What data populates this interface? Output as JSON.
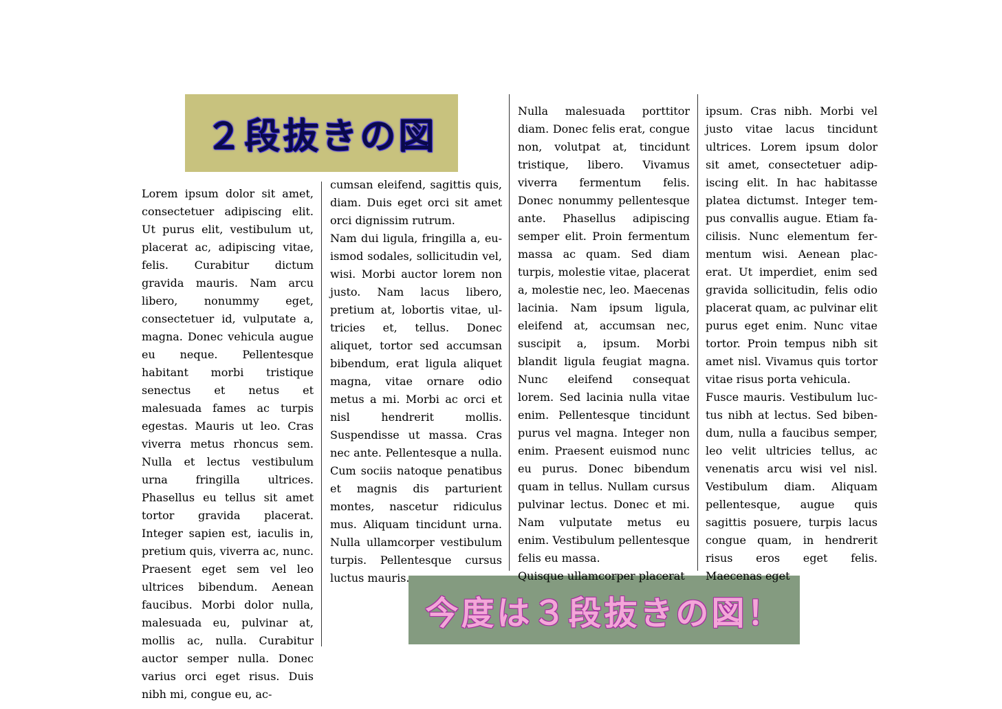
{
  "figures": {
    "two_column_caption": "２段抜きの図",
    "three_column_caption": "今度は３段抜きの図！",
    "two_column_bg": "#c8c27e",
    "three_column_bg": "#849b80"
  },
  "columns": [
    {
      "paragraphs": [
        "Lorem ipsum dolor sit amet, consectetuer adipiscing elit. Ut purus elit, vestibulum ut, plac­erat ac, adipiscing vitae, felis. Curabitur dictum gravida mau­ris. Nam arcu libero, nonummy eget, consectetuer id, vulpu­tate a, magna. Donec vehic­ula augue eu neque. Pellen­tesque habitant morbi tristique senectus et netus et malesuada fames ac turpis egestas. Mau­ris ut leo. Cras viverra metus rhoncus sem. Nulla et lectus vestibulum urna fringilla ultri­ces. Phasellus eu tellus sit amet tortor gravida placerat. Integer sapien est, iaculis in, pretium quis, viverra ac, nunc. Prae­sent eget sem vel leo ultrices bibendum. Aenean faucibus. Morbi dolor nulla, malesuada eu, pulvinar at, mollis ac, nulla. Curabitur auctor semper nulla. Donec varius orci eget risus. Duis nibh mi, congue eu, ac-"
      ]
    },
    {
      "paragraphs": [
        "cumsan eleifend, sagittis quis, diam. Duis eget orci sit amet orci dignissim rutrum.",
        "Nam dui ligula, fringilla a, eu­ismod sodales, sollicitudin vel, wisi. Morbi auctor lorem non justo. Nam lacus libero, pretium at, lobortis vitae, ul­tricies et, tellus. Donec aliquet, tortor sed accumsan bibendum, erat ligula aliquet magna, vi­tae ornare odio metus a mi. Morbi ac orci et nisl hendrerit mollis. Suspendisse ut massa. Cras nec ante. Pellentesque a nulla. Cum sociis natoque pe­natibus et magnis dis parturi­ent montes, nascetur ridiculus mus. Aliquam tincidunt urna. Nulla ullamcorper vestibulum turpis. Pellentesque cursus luc­tus mauris."
      ]
    },
    {
      "paragraphs": [
        "Nulla malesuada porttitor diam. Donec felis erat, congue non, volutpat at, tincidunt tristique, libero. Vivamus viverra fermentum felis. Donec nonummy pellentesque ante. Phasellus adipiscing semper elit. Proin fermentum massa ac quam. Sed diam turpis, mo­lestie vitae, placerat a, molestie nec, leo. Maecenas lacinia. Nam ipsum ligula, eleifend at, accumsan nec, suscipit a, ipsum. Morbi blandit ligula feugiat magna. Nunc eleifend consequat lorem. Sed lacinia nulla vitae enim. Pellentesque tincidunt purus vel magna. Integer non enim. Praesent euismod nunc eu purus. Donec bibendum quam in tellus. Nullam cursus pulvinar lectus. Donec et mi. Nam vulputate metus eu enim. Vestibulum pellentesque felis eu massa.",
        "Quisque ullamcorper placerat"
      ]
    },
    {
      "paragraphs": [
        "ipsum. Cras nibh. Morbi vel justo vitae lacus tincidunt ultrices. Lorem ipsum do­lor sit amet, consectetuer adip­iscing elit. In hac habitasse platea dictumst. Integer tem­pus convallis augue. Etiam fa­cilisis. Nunc elementum fer­mentum wisi. Aenean plac­erat. Ut imperdiet, enim sed gravida sollicitudin, felis odio placerat quam, ac pulvinar elit purus eget enim. Nunc vitae tortor. Proin tempus nibh sit amet nisl. Vivamus quis tortor vitae risus porta vehicula.",
        "Fusce mauris. Vestibulum luc­tus nibh at lectus. Sed biben­dum, nulla a faucibus sem­per, leo velit ultricies tellus, ac venenatis arcu wisi vel nisl. Vestibulum diam. Aliquam pellentesque, augue quis sagit­tis posuere, turpis lacus congue quam, in hendrerit risus eros eget felis. Maecenas eget"
      ]
    }
  ]
}
